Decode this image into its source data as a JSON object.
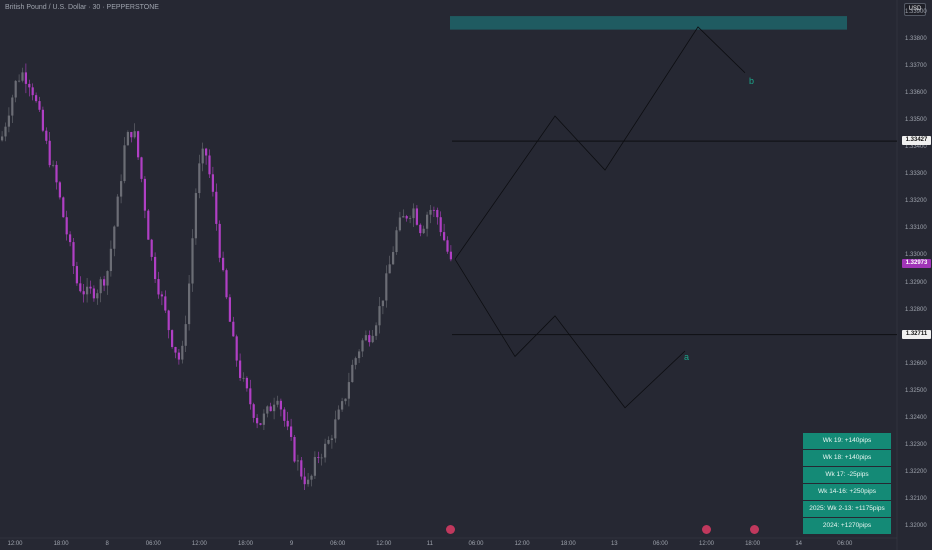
{
  "header": {
    "title": "British Pound / U.S. Dollar · 30 · PEPPERSTONE"
  },
  "currency": "USD",
  "price_axis": {
    "ticks": [
      "1.33900",
      "1.33800",
      "1.33700",
      "1.33600",
      "1.33500",
      "1.33400",
      "1.33300",
      "1.33200",
      "1.33100",
      "1.33000",
      "1.32900",
      "1.32800",
      "1.32700",
      "1.32600",
      "1.32500",
      "1.32400",
      "1.32300",
      "1.32200",
      "1.32100",
      "1.32000"
    ],
    "tick_values": [
      1.339,
      1.338,
      1.337,
      1.336,
      1.335,
      1.334,
      1.333,
      1.332,
      1.331,
      1.33,
      1.329,
      1.328,
      1.327,
      1.326,
      1.325,
      1.324,
      1.323,
      1.322,
      1.321,
      1.32
    ],
    "current_price": "1.32973",
    "current_value": 1.32973,
    "level_high": "1.33427",
    "level_high_value": 1.33427,
    "level_low": "1.32711",
    "level_low_value": 1.32711
  },
  "time_axis": [
    "12:00",
    "18:00",
    "8",
    "06:00",
    "12:00",
    "18:00",
    "9",
    "06:00",
    "12:00",
    "11",
    "06:00",
    "12:00",
    "18:00",
    "13",
    "06:00",
    "12:00",
    "18:00",
    "14",
    "06:00"
  ],
  "wave_labels": {
    "upper": "b",
    "lower": "a"
  },
  "stats": [
    "Wk 19: +140pips",
    "Wk 18: +140pips",
    "Wk 17: -25pips",
    "Wk 14-16: +250pips",
    "2025: Wk 2-13: +1175pips",
    "2024: +1270pips"
  ],
  "colors": {
    "background": "#262833",
    "candle_up": "#6b6d75",
    "candle_down": "#b03fc4",
    "current_price_tag": "#a135b8",
    "stats_bg": "#148a76",
    "zone": "#1f6066",
    "wave_label": "#1ca58a"
  },
  "chart_data": {
    "type": "candlestick",
    "symbol": "British Pound / U.S. Dollar",
    "interval": "30",
    "source": "PEPPERSTONE",
    "ylim": [
      1.3198,
      1.3392
    ],
    "close_path": [
      [
        0,
        1.3343
      ],
      [
        8,
        1.3355
      ],
      [
        16,
        1.3366
      ],
      [
        22,
        1.3368
      ],
      [
        30,
        1.3364
      ],
      [
        38,
        1.3352
      ],
      [
        46,
        1.334
      ],
      [
        56,
        1.3326
      ],
      [
        66,
        1.3308
      ],
      [
        76,
        1.329
      ],
      [
        86,
        1.3286
      ],
      [
        96,
        1.3288
      ],
      [
        106,
        1.3294
      ],
      [
        116,
        1.3318
      ],
      [
        124,
        1.3342
      ],
      [
        132,
        1.3348
      ],
      [
        140,
        1.333
      ],
      [
        150,
        1.33
      ],
      [
        160,
        1.3285
      ],
      [
        170,
        1.327
      ],
      [
        180,
        1.326
      ],
      [
        188,
        1.329
      ],
      [
        196,
        1.333
      ],
      [
        204,
        1.334
      ],
      [
        212,
        1.3322
      ],
      [
        222,
        1.3292
      ],
      [
        232,
        1.3268
      ],
      [
        240,
        1.3255
      ],
      [
        250,
        1.3245
      ],
      [
        258,
        1.3238
      ],
      [
        268,
        1.3243
      ],
      [
        276,
        1.325
      ],
      [
        284,
        1.3238
      ],
      [
        292,
        1.3228
      ],
      [
        300,
        1.322
      ],
      [
        308,
        1.3215
      ],
      [
        316,
        1.3226
      ],
      [
        326,
        1.323
      ],
      [
        334,
        1.3238
      ],
      [
        342,
        1.3245
      ],
      [
        350,
        1.3258
      ],
      [
        360,
        1.3268
      ],
      [
        370,
        1.3272
      ],
      [
        378,
        1.328
      ],
      [
        386,
        1.3292
      ],
      [
        396,
        1.331
      ],
      [
        404,
        1.3315
      ],
      [
        412,
        1.3318
      ],
      [
        420,
        1.331
      ],
      [
        428,
        1.3318
      ],
      [
        436,
        1.3315
      ],
      [
        444,
        1.3305
      ],
      [
        450,
        1.3297
      ]
    ],
    "projection_upper": [
      [
        455,
        1.3299
      ],
      [
        555,
        1.3352
      ],
      [
        605,
        1.3332
      ],
      [
        698,
        1.3385
      ],
      [
        745,
        1.3368
      ]
    ],
    "projection_lower": [
      [
        455,
        1.3299
      ],
      [
        515,
        1.3263
      ],
      [
        555,
        1.3278
      ],
      [
        625,
        1.3244
      ],
      [
        685,
        1.3265
      ]
    ],
    "resistance_zone": [
      1.3384,
      1.3389
    ],
    "levels": [
      1.33427,
      1.32711
    ]
  }
}
